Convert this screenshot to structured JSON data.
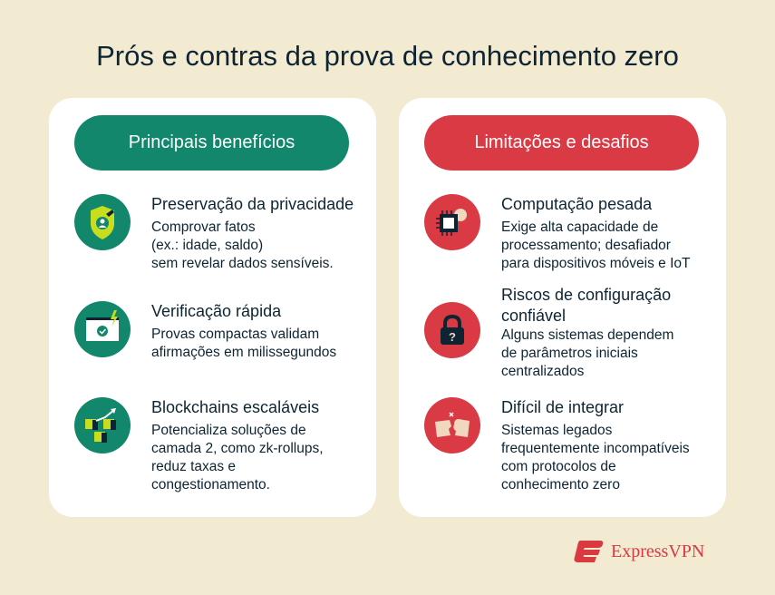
{
  "title": "Prós e contras da prova de conhecimento zero",
  "colors": {
    "background": "#f3ead2",
    "pros": "#12876b",
    "cons": "#da3a44",
    "text": "#0e2433"
  },
  "pros": {
    "header": "Principais benefícios",
    "items": [
      {
        "icon": "shield-user-icon",
        "heading": "Preservação da privacidade",
        "body": [
          "Comprovar fatos",
          "(ex.: idade, saldo)",
          "sem revelar dados sensíveis."
        ]
      },
      {
        "icon": "fast-verification-icon",
        "heading": "Verificação rápida",
        "body": [
          "Provas compactas validam",
          "afirmações em milissegundos"
        ]
      },
      {
        "icon": "blocks-growth-icon",
        "heading": "Blockchains escaláveis",
        "body": [
          "Potencializa soluções de",
          "camada 2, como zk-rollups,",
          "reduz taxas e",
          "congestionamento."
        ]
      }
    ]
  },
  "cons": {
    "header": "Limitações e desafios",
    "items": [
      {
        "icon": "cpu-gear-icon",
        "heading": "Computação pesada",
        "body": [
          "Exige alta capacidade de",
          "processamento; desafiador",
          "para dispositivos móveis e IoT"
        ]
      },
      {
        "icon": "lock-question-icon",
        "heading": "Riscos de configuração confiável",
        "body": [
          "Alguns sistemas dependem",
          "de parâmetros iniciais",
          "centralizados"
        ]
      },
      {
        "icon": "puzzle-mismatch-icon",
        "heading": "Difícil de integrar",
        "body": [
          "Sistemas legados",
          "frequentemente incompatíveis",
          "com protocolos de",
          "conhecimento zero"
        ]
      }
    ]
  },
  "brand": "ExpressVPN"
}
